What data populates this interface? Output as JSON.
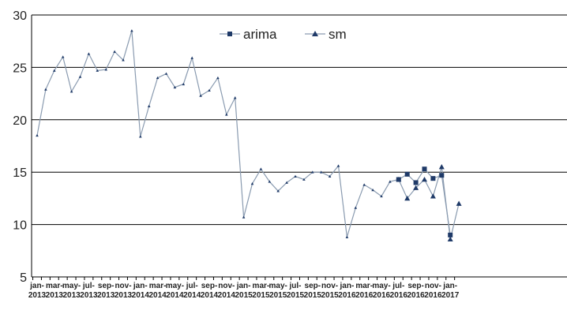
{
  "chart_data": {
    "type": "line",
    "title": "",
    "xlabel": "",
    "ylabel": "",
    "ylim": [
      5,
      30
    ],
    "yticks": [
      5,
      10,
      15,
      20,
      25,
      30
    ],
    "grid": "horizontal",
    "legend_position": "top-center",
    "colors": {
      "line": "#8a9bb0",
      "marker": "#1f3a68",
      "grid": "#000000"
    },
    "x_tick_labels": [
      [
        "jan-",
        "2013"
      ],
      [
        "mar-",
        "2013"
      ],
      [
        "may-",
        "2013"
      ],
      [
        "jul-",
        "2013"
      ],
      [
        "sep-",
        "2013"
      ],
      [
        "nov-",
        "2013"
      ],
      [
        "jan-",
        "2014"
      ],
      [
        "mar-",
        "2014"
      ],
      [
        "may-",
        "2014"
      ],
      [
        "jul-",
        "2014"
      ],
      [
        "sep-",
        "2014"
      ],
      [
        "nov-",
        "2014"
      ],
      [
        "jan-",
        "2015"
      ],
      [
        "mar-",
        "2015"
      ],
      [
        "may-",
        "2015"
      ],
      [
        "jul-",
        "2015"
      ],
      [
        "sep-",
        "2015"
      ],
      [
        "nov-",
        "2015"
      ],
      [
        "jan-",
        "2016"
      ],
      [
        "mar-",
        "2016"
      ],
      [
        "may-",
        "2016"
      ],
      [
        "jul-",
        "2016"
      ],
      [
        "sep-",
        "2016"
      ],
      [
        "nov-",
        "2016"
      ],
      [
        "jan-",
        "2017"
      ]
    ],
    "series": [
      {
        "name": "arima",
        "marker": "square",
        "values": [
          null,
          null,
          null,
          null,
          null,
          null,
          null,
          null,
          null,
          null,
          null,
          null,
          null,
          null,
          null,
          null,
          null,
          null,
          null,
          null,
          null,
          null,
          null,
          null,
          null,
          null,
          null,
          null,
          null,
          null,
          null,
          null,
          null,
          null,
          null,
          null,
          null,
          null,
          null,
          null,
          null,
          null,
          14.3,
          14.8,
          14.0,
          15.3,
          14.4,
          14.7,
          9.0
        ]
      },
      {
        "name": "sm",
        "marker": "triangle",
        "values": [
          18.5,
          22.9,
          24.7,
          26.0,
          22.7,
          24.1,
          26.3,
          24.7,
          24.8,
          26.5,
          25.7,
          28.5,
          18.4,
          21.3,
          24.0,
          24.4,
          23.1,
          23.4,
          25.9,
          22.3,
          22.8,
          24.0,
          20.5,
          22.1,
          10.7,
          13.9,
          15.3,
          14.1,
          13.2,
          14.0,
          14.6,
          14.3,
          15.0,
          15.0,
          14.6,
          15.6,
          8.8,
          11.6,
          13.8,
          13.3,
          12.7,
          14.1,
          14.3,
          12.5,
          13.5,
          14.3,
          12.7,
          15.5,
          8.6,
          12.0
        ]
      }
    ]
  }
}
